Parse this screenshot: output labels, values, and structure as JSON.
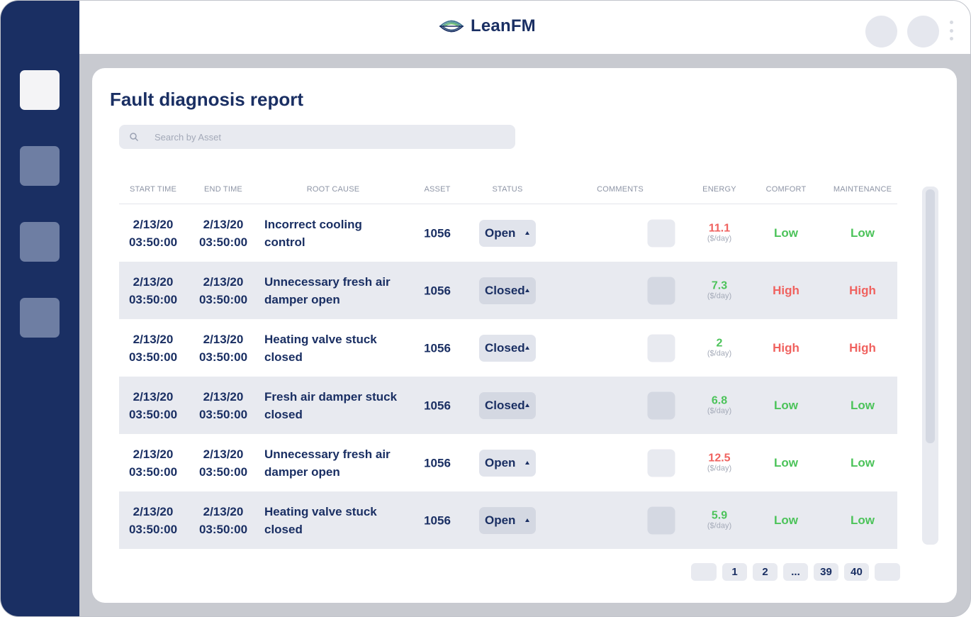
{
  "app": {
    "logo_text": "LeanFM"
  },
  "page": {
    "title": "Fault diagnosis report"
  },
  "search": {
    "placeholder": "Search by Asset"
  },
  "table": {
    "headers": [
      "START TIME",
      "END TIME",
      "ROOT CAUSE",
      "ASSET",
      "STATUS",
      "COMMENTS",
      "ENERGY",
      "COMFORT",
      "MAINTENANCE"
    ],
    "rows": [
      {
        "start_date": "2/13/20",
        "start_time": "03:50:00",
        "end_date": "2/13/20",
        "end_time": "03:50:00",
        "cause": "Incorrect cooling control",
        "asset": "1056",
        "status": "Open",
        "energy": "11.1",
        "energy_unit": "($/day)",
        "energy_level": "bad",
        "comfort": "Low",
        "maintenance": "Low"
      },
      {
        "start_date": "2/13/20",
        "start_time": "03:50:00",
        "end_date": "2/13/20",
        "end_time": "03:50:00",
        "cause": "Unnecessary fresh air damper open",
        "asset": "1056",
        "status": "Closed",
        "energy": "7.3",
        "energy_unit": "($/day)",
        "energy_level": "good",
        "comfort": "High",
        "maintenance": "High"
      },
      {
        "start_date": "2/13/20",
        "start_time": "03:50:00",
        "end_date": "2/13/20",
        "end_time": "03:50:00",
        "cause": "Heating valve stuck closed",
        "asset": "1056",
        "status": "Closed",
        "energy": "2",
        "energy_unit": "($/day)",
        "energy_level": "good",
        "comfort": "High",
        "maintenance": "High"
      },
      {
        "start_date": "2/13/20",
        "start_time": "03:50:00",
        "end_date": "2/13/20",
        "end_time": "03:50:00",
        "cause": "Fresh air damper stuck closed",
        "asset": "1056",
        "status": "Closed",
        "energy": "6.8",
        "energy_unit": "($/day)",
        "energy_level": "good",
        "comfort": "Low",
        "maintenance": "Low"
      },
      {
        "start_date": "2/13/20",
        "start_time": "03:50:00",
        "end_date": "2/13/20",
        "end_time": "03:50:00",
        "cause": "Unnecessary fresh air damper open",
        "asset": "1056",
        "status": "Open",
        "energy": "12.5",
        "energy_unit": "($/day)",
        "energy_level": "bad",
        "comfort": "Low",
        "maintenance": "Low"
      },
      {
        "start_date": "2/13/20",
        "start_time": "03:50:00",
        "end_date": "2/13/20",
        "end_time": "03:50:00",
        "cause": "Heating valve stuck closed",
        "asset": "1056",
        "status": "Open",
        "energy": "5.9",
        "energy_unit": "($/day)",
        "energy_level": "good",
        "comfort": "Low",
        "maintenance": "Low"
      }
    ]
  },
  "pagination": {
    "prev_label": "",
    "pages": [
      "1",
      "2",
      "...",
      "39",
      "40"
    ],
    "next_label": ""
  },
  "colors": {
    "navy": "#1a2f63",
    "good": "#4cc35a",
    "bad": "#f0625f",
    "highlight_row": "#e8eaf0"
  },
  "icons": {
    "logo": "leanfm-logo-icon",
    "search": "search-icon",
    "sort": "caret-up-icon",
    "menu": "kebab-menu-icon"
  }
}
